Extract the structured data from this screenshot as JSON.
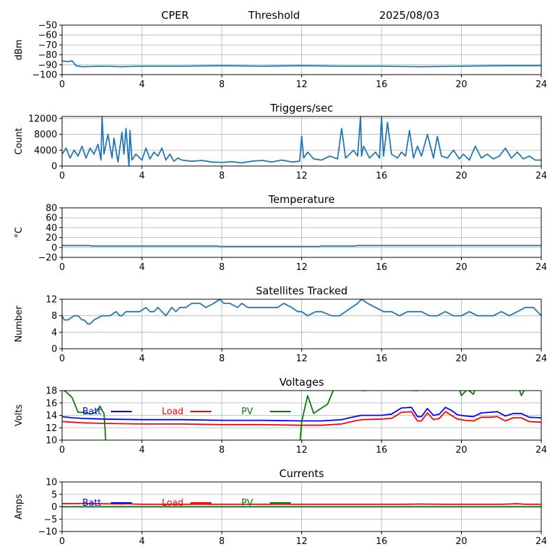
{
  "header": {
    "station": "CPER",
    "mode": "Threshold",
    "date": "2025/08/03"
  },
  "colors": {
    "series": "#1f77b4",
    "batt": "#0000ff",
    "load": "#ff0000",
    "pv": "#008000",
    "grid": "#b0b0b0"
  },
  "chart_data": [
    {
      "type": "line",
      "title": "",
      "ylabel": "dBm",
      "xlim": [
        0,
        24
      ],
      "ylim": [
        -100,
        -50
      ],
      "xticks": [
        0,
        4,
        8,
        12,
        16,
        20,
        24
      ],
      "yticks": [
        -100,
        -90,
        -80,
        -70,
        -60,
        -50
      ],
      "grid": true,
      "series": [
        {
          "x": [
            0,
            0.3,
            0.5,
            0.7,
            1,
            2,
            3,
            4,
            6,
            8,
            10,
            12,
            14,
            16,
            18,
            20,
            22,
            24
          ],
          "y": [
            -86,
            -87,
            -86,
            -91,
            -92,
            -91.5,
            -92,
            -91.5,
            -91.5,
            -91,
            -91.5,
            -91,
            -91.5,
            -91.5,
            -92,
            -91.5,
            -91,
            -91
          ]
        }
      ]
    },
    {
      "type": "line",
      "title": "Triggers/sec",
      "ylabel": "Count",
      "xlim": [
        0,
        24
      ],
      "ylim": [
        0,
        12500
      ],
      "xticks": [
        0,
        4,
        8,
        12,
        16,
        20,
        24
      ],
      "yticks": [
        0,
        4000,
        8000,
        12000
      ],
      "grid": true,
      "series": [
        {
          "x": [
            0,
            0.2,
            0.4,
            0.6,
            0.8,
            1.0,
            1.2,
            1.4,
            1.6,
            1.8,
            1.95,
            2.0,
            2.1,
            2.3,
            2.5,
            2.6,
            2.8,
            3.0,
            3.1,
            3.2,
            3.35,
            3.4,
            3.5,
            3.7,
            4.0,
            4.2,
            4.4,
            4.6,
            4.8,
            5.0,
            5.2,
            5.4,
            5.6,
            5.8,
            6.0,
            6.5,
            7.0,
            7.5,
            8.0,
            8.5,
            9.0,
            9.5,
            10.0,
            10.5,
            11.0,
            11.5,
            11.9,
            12.0,
            12.1,
            12.3,
            12.6,
            13.0,
            13.4,
            13.8,
            14.0,
            14.2,
            14.4,
            14.6,
            14.8,
            14.95,
            15.0,
            15.1,
            15.4,
            15.7,
            15.9,
            16.0,
            16.1,
            16.3,
            16.5,
            16.8,
            17.0,
            17.2,
            17.4,
            17.6,
            17.8,
            18.0,
            18.3,
            18.6,
            18.8,
            19.0,
            19.3,
            19.6,
            19.9,
            20.1,
            20.4,
            20.7,
            21.0,
            21.3,
            21.6,
            21.9,
            22.2,
            22.5,
            22.8,
            23.1,
            23.4,
            23.7,
            24.0
          ],
          "y": [
            3000,
            4500,
            2000,
            4000,
            2500,
            5000,
            2000,
            4500,
            3000,
            5500,
            1500,
            12500,
            3000,
            8000,
            2000,
            7000,
            1000,
            8500,
            3000,
            9500,
            0,
            9000,
            1500,
            3000,
            1500,
            4500,
            1800,
            3500,
            2500,
            4500,
            1500,
            3000,
            1200,
            2000,
            1500,
            1200,
            1400,
            1000,
            900,
            1100,
            800,
            1200,
            1400,
            1000,
            1500,
            1000,
            1200,
            7500,
            2000,
            3500,
            1800,
            1500,
            2500,
            1800,
            9500,
            2000,
            3000,
            4000,
            2500,
            12500,
            2500,
            5000,
            2000,
            3500,
            2000,
            12500,
            2500,
            11000,
            3000,
            2000,
            3500,
            2500,
            9000,
            2000,
            5000,
            2500,
            8000,
            2000,
            7500,
            2500,
            2000,
            4000,
            1800,
            3000,
            1500,
            5000,
            2000,
            3000,
            1800,
            2500,
            4500,
            2000,
            3500,
            1800,
            2500,
            1500,
            1500
          ]
        }
      ]
    },
    {
      "type": "line",
      "title": "Temperature",
      "ylabel": "°C",
      "xlim": [
        0,
        24
      ],
      "ylim": [
        -20,
        80
      ],
      "xticks": [
        0,
        4,
        8,
        12,
        16,
        20,
        24
      ],
      "yticks": [
        -20,
        0,
        20,
        40,
        60,
        80
      ],
      "grid": true,
      "series": [
        {
          "x": [
            0,
            1.4,
            1.45,
            7.8,
            7.85,
            12.9,
            12.95,
            14.7,
            14.75,
            24
          ],
          "y": [
            4,
            4,
            3,
            3,
            2,
            2,
            3,
            3,
            4,
            4
          ]
        }
      ]
    },
    {
      "type": "line",
      "title": "Satellites Tracked",
      "ylabel": "Number",
      "xlim": [
        0,
        24
      ],
      "ylim": [
        0,
        12
      ],
      "xticks": [
        0,
        4,
        8,
        12,
        16,
        20,
        24
      ],
      "yticks": [
        0,
        4,
        8,
        12
      ],
      "grid": true,
      "series": [
        {
          "x": [
            0,
            0.1,
            0.3,
            0.6,
            0.8,
            1.0,
            1.1,
            1.3,
            1.4,
            1.6,
            2.0,
            2.2,
            2.4,
            2.7,
            2.9,
            3.0,
            3.2,
            3.5,
            3.9,
            4.2,
            4.4,
            4.6,
            4.8,
            5.0,
            5.2,
            5.5,
            5.7,
            5.9,
            6.2,
            6.5,
            6.9,
            7.2,
            7.6,
            7.9,
            8.1,
            8.4,
            8.8,
            9.0,
            9.3,
            9.6,
            10.0,
            10.4,
            10.8,
            11.1,
            11.5,
            11.8,
            12.0,
            12.3,
            12.7,
            13.0,
            13.5,
            13.9,
            14.2,
            14.5,
            14.8,
            15.0,
            15.3,
            15.7,
            16.1,
            16.5,
            16.9,
            17.3,
            17.7,
            18.0,
            18.4,
            18.8,
            19.2,
            19.6,
            20.0,
            20.4,
            20.8,
            21.2,
            21.6,
            22.0,
            22.4,
            22.8,
            23.2,
            23.6,
            23.8,
            24.0
          ],
          "y": [
            8,
            7,
            7,
            8,
            8,
            7,
            7,
            6,
            6,
            7,
            8,
            8,
            8,
            9,
            8,
            8,
            9,
            9,
            9,
            10,
            9,
            9,
            10,
            9,
            8,
            10,
            9,
            10,
            10,
            11,
            11,
            10,
            11,
            12,
            11,
            11,
            10,
            11,
            10,
            10,
            10,
            10,
            10,
            11,
            10,
            9,
            9,
            8,
            9,
            9,
            8,
            8,
            9,
            10,
            11,
            12,
            11,
            10,
            9,
            9,
            8,
            9,
            9,
            9,
            8,
            8,
            9,
            8,
            8,
            9,
            8,
            8,
            8,
            9,
            8,
            9,
            10,
            10,
            9,
            8
          ]
        }
      ]
    },
    {
      "type": "line",
      "title": "Voltages",
      "ylabel": "Volts",
      "xlim": [
        0,
        24
      ],
      "ylim": [
        10,
        18
      ],
      "xticks": [
        0,
        4,
        8,
        12,
        16,
        20,
        24
      ],
      "yticks": [
        10,
        12,
        14,
        16,
        18
      ],
      "grid": true,
      "legend": "top-left",
      "series": [
        {
          "name": "Batt",
          "x": [
            0,
            0.5,
            1,
            2,
            4,
            6,
            8,
            10,
            12,
            13,
            14,
            14.5,
            15,
            16,
            16.5,
            17,
            17.5,
            17.8,
            18,
            18.3,
            18.6,
            18.9,
            19.2,
            19.5,
            19.8,
            20.2,
            20.6,
            21,
            21.4,
            21.8,
            22.2,
            22.6,
            23,
            23.4,
            24
          ],
          "y": [
            13.8,
            13.6,
            13.5,
            13.4,
            13.3,
            13.3,
            13.2,
            13.2,
            13.1,
            13.1,
            13.3,
            13.7,
            14.0,
            14.0,
            14.2,
            15.2,
            15.3,
            13.8,
            13.8,
            15.1,
            14.0,
            14.2,
            15.3,
            14.8,
            14.1,
            13.9,
            13.8,
            14.4,
            14.5,
            14.6,
            13.9,
            14.3,
            14.3,
            13.7,
            13.6
          ]
        },
        {
          "name": "Load",
          "x": [
            0,
            0.5,
            1,
            2,
            4,
            6,
            8,
            10,
            12,
            13,
            14,
            14.5,
            15,
            16,
            16.5,
            17,
            17.5,
            17.8,
            18,
            18.3,
            18.6,
            18.9,
            19.2,
            19.5,
            19.8,
            20.2,
            20.6,
            21,
            21.4,
            21.8,
            22.2,
            22.6,
            23,
            23.4,
            24
          ],
          "y": [
            13.0,
            12.9,
            12.8,
            12.7,
            12.6,
            12.6,
            12.5,
            12.5,
            12.4,
            12.4,
            12.6,
            13.0,
            13.3,
            13.4,
            13.5,
            14.5,
            14.6,
            13.1,
            13.1,
            14.4,
            13.3,
            13.5,
            14.6,
            14.0,
            13.4,
            13.2,
            13.1,
            13.7,
            13.7,
            13.8,
            13.1,
            13.6,
            13.6,
            13.0,
            12.9
          ]
        },
        {
          "name": "PV",
          "x": [
            0,
            0.2,
            0.5,
            0.8,
            1.1,
            1.4,
            1.7,
            1.9,
            2.0,
            2.1,
            2.15,
            2.2,
            11.9,
            12.0,
            12.3,
            12.6,
            12.9,
            13.3,
            13.6,
            13.9,
            15.2,
            15.5,
            17.8,
            17.9,
            19.9,
            20.0,
            20.3,
            20.6,
            20.7,
            22.9,
            23.0,
            23.2,
            23.4
          ],
          "y": [
            18.2,
            17.8,
            16.9,
            14.5,
            14.5,
            14.2,
            14.5,
            15.5,
            14.8,
            14.3,
            12.0,
            9.0,
            9.0,
            13.0,
            17.2,
            14.3,
            15.0,
            15.8,
            18.2,
            18.2,
            18.0,
            18.2,
            18.0,
            18.2,
            18.2,
            17.2,
            18.2,
            17.4,
            18.2,
            18.2,
            17.2,
            18.3,
            18.3
          ]
        }
      ]
    },
    {
      "type": "line",
      "title": "Currents",
      "ylabel": "Amps",
      "xlim": [
        0,
        24
      ],
      "ylim": [
        -10,
        10
      ],
      "xticks": [
        0,
        4,
        8,
        12,
        16,
        20,
        24
      ],
      "yticks": [
        -10,
        -5,
        0,
        5,
        10
      ],
      "grid": true,
      "legend": "top-left",
      "series": [
        {
          "name": "Batt",
          "x": [
            0,
            24
          ],
          "y": [
            0,
            0
          ]
        },
        {
          "name": "Load",
          "x": [
            0,
            1,
            2,
            3,
            3.3,
            3.6,
            4,
            6,
            8,
            10,
            12,
            14,
            16,
            17,
            18,
            19,
            20,
            21,
            22,
            22.8,
            23.2,
            24
          ],
          "y": [
            1.2,
            1.3,
            1.2,
            1.1,
            1.2,
            1.1,
            1.0,
            1.0,
            1.0,
            1.0,
            1.0,
            1.0,
            1.0,
            1.0,
            1.1,
            1.0,
            1.0,
            1.0,
            1.0,
            1.2,
            1.0,
            1.0
          ]
        },
        {
          "name": "PV",
          "x": [
            0,
            24
          ],
          "y": [
            0,
            0
          ]
        }
      ]
    }
  ]
}
